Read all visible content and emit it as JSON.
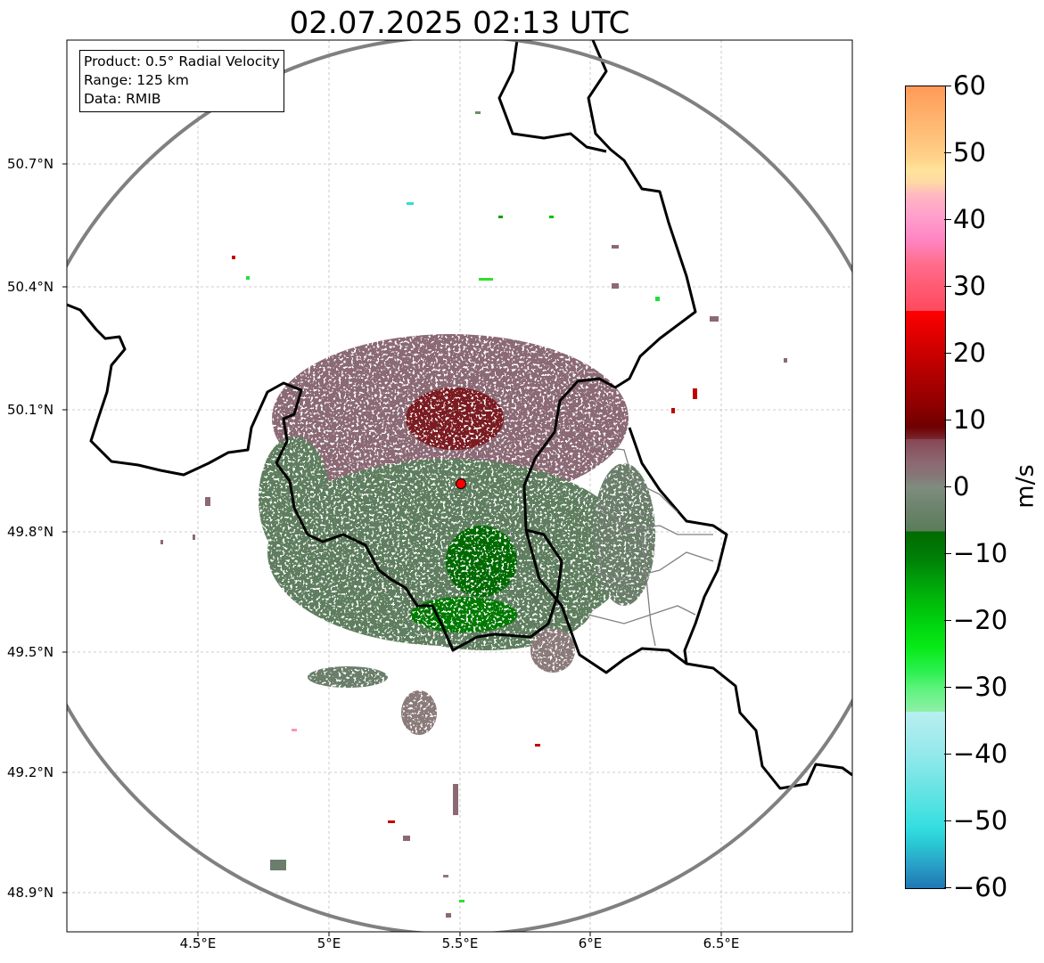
{
  "title": "02.07.2025 02:13 UTC",
  "info_box": {
    "product": "Product: 0.5° Radial Velocity",
    "range": "Range: 125 km",
    "data": "Data: RMIB"
  },
  "axes": {
    "x_ticks": [
      "4.5°E",
      "5°E",
      "5.5°E",
      "6°E",
      "6.5°E"
    ],
    "y_ticks": [
      "50.7°N",
      "50.4°N",
      "50.1°N",
      "49.8°N",
      "49.5°N",
      "49.2°N",
      "48.9°N"
    ],
    "lon_range": [
      4.0,
      7.0
    ],
    "lat_range": [
      48.8,
      50.98
    ],
    "grid": true
  },
  "radar": {
    "site_lon": 5.505,
    "site_lat": 49.914,
    "site_color": "#ff0000",
    "range_ring_color": "#808080"
  },
  "colorbar": {
    "label": "m/s",
    "min": -60,
    "max": 60,
    "ticks": [
      "60",
      "50",
      "40",
      "30",
      "20",
      "10",
      "0",
      "−10",
      "−20",
      "−30",
      "−40",
      "−50",
      "−60"
    ]
  },
  "colors": {
    "receding": "#8b6a74",
    "approaching": "#5f7e5f",
    "border": "#000000",
    "admin_border": "#808080"
  }
}
